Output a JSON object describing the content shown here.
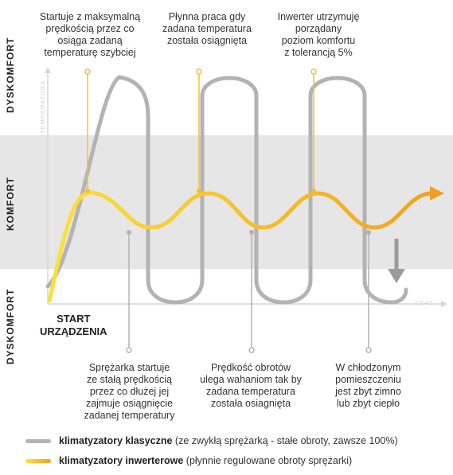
{
  "zones": {
    "top": "DYSKOMFORT",
    "middle": "KOMFORT",
    "bottom": "DYSKOMFORT"
  },
  "axes": {
    "y_label": "TEMPERATURA",
    "x_label": "CZAS"
  },
  "start": {
    "line1": "START",
    "line2": "URZĄDZENIA"
  },
  "top_notes": [
    {
      "lines": [
        "Startuje z maksymalną",
        "prędkością przez co",
        "osiąga  zadaną",
        "temperaturę szybciej"
      ]
    },
    {
      "lines": [
        "Płynna praca gdy",
        "zadana temperatura",
        "została osiągnięta"
      ]
    },
    {
      "lines": [
        "Inwerter utrzymuję",
        "porządany",
        "poziom komfortu",
        "z tolerancją 5%"
      ]
    }
  ],
  "bottom_notes": [
    {
      "lines": [
        "Sprężarka startuje",
        "ze stałą prędkością",
        "przez co dłużej jej",
        "zajmuje osiągnięcie",
        "zadanej temperatury"
      ]
    },
    {
      "lines": [
        "Prędkość obrotów",
        "ulega wahaniom tak by",
        "zadana temperatura",
        "została osiagnięta"
      ]
    },
    {
      "lines": [
        "W chłodzonym",
        "pomieszczeniu",
        "jest zbyt zimno",
        "lub zbyt ciepło"
      ]
    }
  ],
  "legend": [
    {
      "bold": "klimatyzatory klasyczne",
      "rest": " (ze zwykłą sprężarką - stałe obroty, zawsze 100%)",
      "color": "#b3b3b3"
    },
    {
      "bold": "klimatyzatory inwerterowe",
      "rest": " (płynnie regulowane obroty sprężarki)",
      "color": "#f7c623"
    }
  ],
  "colors": {
    "inverter_start": "#fce13a",
    "inverter_end": "#f0a020",
    "classic": "#b3b3b3",
    "callout_top": "#f5c02a",
    "callout_bottom": "#b3b3b3",
    "comfort_band": "#e6e6e6"
  }
}
